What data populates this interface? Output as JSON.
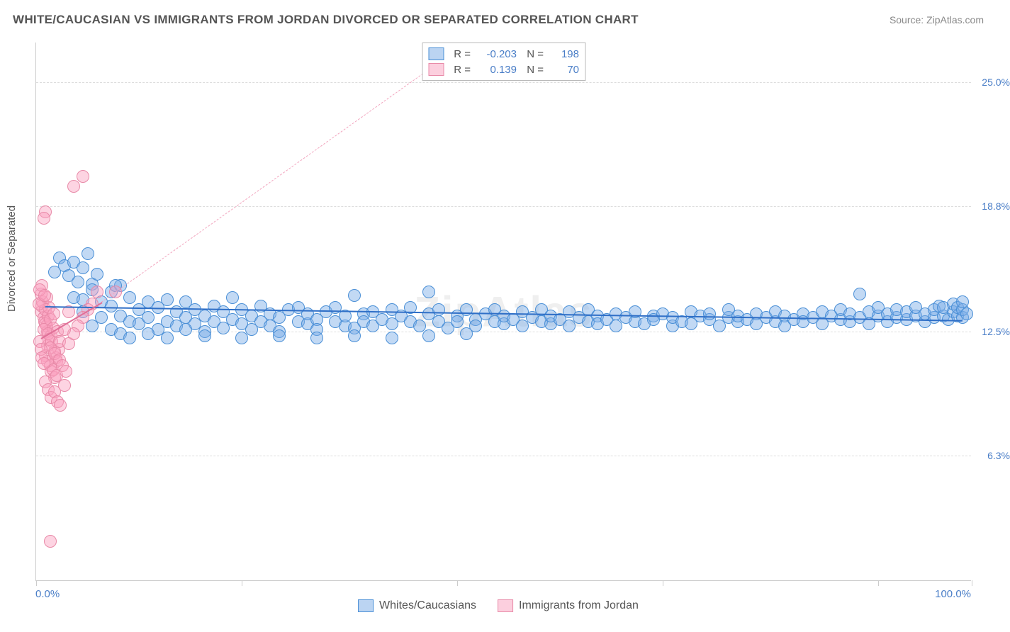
{
  "title": "WHITE/CAUCASIAN VS IMMIGRANTS FROM JORDAN DIVORCED OR SEPARATED CORRELATION CHART",
  "source": "Source: ZipAtlas.com",
  "watermark": "ZipAtlas",
  "y_axis_title": "Divorced or Separated",
  "chart": {
    "type": "scatter",
    "xlim": [
      0,
      100
    ],
    "ylim": [
      0,
      27
    ],
    "x_ticks_at": [
      0,
      22,
      45,
      67,
      90,
      100
    ],
    "y_gridlines": [
      {
        "value": 6.3,
        "label": "6.3%"
      },
      {
        "value": 12.5,
        "label": "12.5%"
      },
      {
        "value": 18.8,
        "label": "18.8%"
      },
      {
        "value": 25.0,
        "label": "25.0%"
      }
    ],
    "x_min_label": "0.0%",
    "x_max_label": "100.0%",
    "background_color": "#ffffff",
    "grid_color": "#dddddd",
    "axis_color": "#cccccc",
    "tick_label_color": "#4a7ec7",
    "marker_radius": 9,
    "marker_stroke_width": 1.5,
    "series": [
      {
        "name": "Whites/Caucasians",
        "fill": "rgba(120,170,230,0.45)",
        "stroke": "#4a8fd6",
        "trend_color": "#2f6fc7",
        "trend_width": 2.5,
        "trend": {
          "x1": 1,
          "y1": 13.8,
          "x2": 99,
          "y2": 13.1
        },
        "points": [
          [
            2,
            15.5
          ],
          [
            2.5,
            16.2
          ],
          [
            3,
            15.8
          ],
          [
            3.5,
            15.3
          ],
          [
            4,
            16.0
          ],
          [
            4.5,
            15.0
          ],
          [
            5,
            15.7
          ],
          [
            5.5,
            16.4
          ],
          [
            6,
            14.9
          ],
          [
            6.5,
            15.4
          ],
          [
            4,
            14.2
          ],
          [
            5,
            14.1
          ],
          [
            6,
            14.6
          ],
          [
            7,
            14.0
          ],
          [
            8,
            13.8
          ],
          [
            8,
            14.5
          ],
          [
            9,
            13.3
          ],
          [
            9,
            14.8
          ],
          [
            10,
            13.0
          ],
          [
            10,
            14.2
          ],
          [
            11,
            13.6
          ],
          [
            11,
            12.9
          ],
          [
            12,
            14.0
          ],
          [
            12,
            13.2
          ],
          [
            13,
            13.7
          ],
          [
            13,
            12.6
          ],
          [
            14,
            14.1
          ],
          [
            14,
            13.0
          ],
          [
            15,
            13.5
          ],
          [
            15,
            12.8
          ],
          [
            16,
            13.2
          ],
          [
            16,
            14.0
          ],
          [
            17,
            12.9
          ],
          [
            17,
            13.6
          ],
          [
            18,
            13.3
          ],
          [
            18,
            12.5
          ],
          [
            19,
            13.8
          ],
          [
            19,
            13.0
          ],
          [
            20,
            13.5
          ],
          [
            20,
            12.7
          ],
          [
            21,
            14.2
          ],
          [
            21,
            13.1
          ],
          [
            22,
            12.9
          ],
          [
            22,
            13.6
          ],
          [
            23,
            13.3
          ],
          [
            23,
            12.6
          ],
          [
            24,
            13.8
          ],
          [
            24,
            13.0
          ],
          [
            25,
            13.4
          ],
          [
            25,
            12.8
          ],
          [
            26,
            13.2
          ],
          [
            26,
            12.5
          ],
          [
            27,
            13.6
          ],
          [
            28,
            13.0
          ],
          [
            28,
            13.7
          ],
          [
            29,
            12.9
          ],
          [
            29,
            13.4
          ],
          [
            30,
            13.1
          ],
          [
            30,
            12.6
          ],
          [
            31,
            13.5
          ],
          [
            32,
            13.0
          ],
          [
            32,
            13.7
          ],
          [
            33,
            12.8
          ],
          [
            33,
            13.3
          ],
          [
            34,
            14.3
          ],
          [
            34,
            12.7
          ],
          [
            35,
            13.4
          ],
          [
            35,
            13.0
          ],
          [
            36,
            12.8
          ],
          [
            36,
            13.5
          ],
          [
            37,
            13.1
          ],
          [
            38,
            13.6
          ],
          [
            38,
            12.9
          ],
          [
            39,
            13.3
          ],
          [
            40,
            13.0
          ],
          [
            40,
            13.7
          ],
          [
            41,
            12.8
          ],
          [
            42,
            13.4
          ],
          [
            42,
            14.5
          ],
          [
            43,
            13.0
          ],
          [
            43,
            13.6
          ],
          [
            44,
            12.7
          ],
          [
            45,
            13.3
          ],
          [
            45,
            13.0
          ],
          [
            46,
            13.6
          ],
          [
            47,
            13.1
          ],
          [
            47,
            12.8
          ],
          [
            48,
            13.4
          ],
          [
            49,
            13.0
          ],
          [
            49,
            13.6
          ],
          [
            50,
            12.9
          ],
          [
            50,
            13.3
          ],
          [
            51,
            13.1
          ],
          [
            52,
            13.5
          ],
          [
            52,
            12.8
          ],
          [
            53,
            13.2
          ],
          [
            54,
            13.0
          ],
          [
            54,
            13.6
          ],
          [
            55,
            12.9
          ],
          [
            55,
            13.3
          ],
          [
            56,
            13.1
          ],
          [
            57,
            13.5
          ],
          [
            57,
            12.8
          ],
          [
            58,
            13.2
          ],
          [
            59,
            13.0
          ],
          [
            59,
            13.6
          ],
          [
            60,
            13.3
          ],
          [
            60,
            12.9
          ],
          [
            61,
            13.1
          ],
          [
            62,
            13.4
          ],
          [
            62,
            12.8
          ],
          [
            63,
            13.2
          ],
          [
            64,
            13.0
          ],
          [
            64,
            13.5
          ],
          [
            65,
            12.9
          ],
          [
            66,
            13.3
          ],
          [
            66,
            13.1
          ],
          [
            67,
            13.4
          ],
          [
            68,
            12.8
          ],
          [
            68,
            13.2
          ],
          [
            69,
            13.0
          ],
          [
            70,
            13.5
          ],
          [
            70,
            12.9
          ],
          [
            71,
            13.3
          ],
          [
            72,
            13.1
          ],
          [
            72,
            13.4
          ],
          [
            73,
            12.8
          ],
          [
            74,
            13.2
          ],
          [
            74,
            13.6
          ],
          [
            75,
            13.0
          ],
          [
            75,
            13.3
          ],
          [
            76,
            13.1
          ],
          [
            77,
            13.4
          ],
          [
            77,
            12.9
          ],
          [
            78,
            13.2
          ],
          [
            79,
            13.0
          ],
          [
            79,
            13.5
          ],
          [
            80,
            13.3
          ],
          [
            80,
            12.8
          ],
          [
            81,
            13.1
          ],
          [
            82,
            13.4
          ],
          [
            82,
            13.0
          ],
          [
            83,
            13.2
          ],
          [
            84,
            13.5
          ],
          [
            84,
            12.9
          ],
          [
            85,
            13.3
          ],
          [
            86,
            13.1
          ],
          [
            86,
            13.6
          ],
          [
            87,
            13.0
          ],
          [
            87,
            13.4
          ],
          [
            88,
            14.4
          ],
          [
            88,
            13.2
          ],
          [
            89,
            13.5
          ],
          [
            89,
            12.9
          ],
          [
            90,
            13.3
          ],
          [
            90,
            13.7
          ],
          [
            91,
            13.0
          ],
          [
            91,
            13.4
          ],
          [
            92,
            13.2
          ],
          [
            92,
            13.6
          ],
          [
            93,
            13.1
          ],
          [
            93,
            13.5
          ],
          [
            94,
            13.3
          ],
          [
            94,
            13.7
          ],
          [
            95,
            13.0
          ],
          [
            95,
            13.4
          ],
          [
            96,
            13.2
          ],
          [
            96,
            13.6
          ],
          [
            96.5,
            13.8
          ],
          [
            97,
            13.3
          ],
          [
            97,
            13.7
          ],
          [
            97.5,
            13.1
          ],
          [
            98,
            13.5
          ],
          [
            98,
            13.9
          ],
          [
            98.5,
            13.3
          ],
          [
            98.5,
            13.7
          ],
          [
            99,
            13.2
          ],
          [
            99,
            13.6
          ],
          [
            99,
            14.0
          ],
          [
            99.5,
            13.4
          ],
          [
            5,
            13.5
          ],
          [
            6,
            12.8
          ],
          [
            7,
            13.2
          ],
          [
            8,
            12.6
          ],
          [
            9,
            12.4
          ],
          [
            10,
            12.2
          ],
          [
            12,
            12.4
          ],
          [
            14,
            12.2
          ],
          [
            16,
            12.6
          ],
          [
            18,
            12.3
          ],
          [
            22,
            12.2
          ],
          [
            26,
            12.3
          ],
          [
            30,
            12.2
          ],
          [
            34,
            12.3
          ],
          [
            38,
            12.2
          ],
          [
            42,
            12.3
          ],
          [
            46,
            12.4
          ],
          [
            8.5,
            14.8
          ]
        ]
      },
      {
        "name": "Immigrants from Jordan",
        "fill": "rgba(250,160,190,0.45)",
        "stroke": "#e88aa8",
        "trend_color": "#e07098",
        "trend_width": 2,
        "trend": {
          "x1": 0.5,
          "y1": 12.2,
          "x2": 7,
          "y2": 14.0
        },
        "extrapolation": {
          "x1": 7,
          "y1": 14.0,
          "x2": 46,
          "y2": 27
        },
        "extrapolation_color": "#f2a6bf",
        "points": [
          [
            0.5,
            13.5
          ],
          [
            0.8,
            13.2
          ],
          [
            0.6,
            13.8
          ],
          [
            0.9,
            13.0
          ],
          [
            1.0,
            13.6
          ],
          [
            1.1,
            12.8
          ],
          [
            0.7,
            14.0
          ],
          [
            1.2,
            12.5
          ],
          [
            1.3,
            13.3
          ],
          [
            1.0,
            12.9
          ],
          [
            1.4,
            13.7
          ],
          [
            0.8,
            12.6
          ],
          [
            1.5,
            13.1
          ],
          [
            1.6,
            12.3
          ],
          [
            1.1,
            14.2
          ],
          [
            1.7,
            12.0
          ],
          [
            1.8,
            12.7
          ],
          [
            1.2,
            11.8
          ],
          [
            1.9,
            13.4
          ],
          [
            2.0,
            11.5
          ],
          [
            1.3,
            12.4
          ],
          [
            2.1,
            11.2
          ],
          [
            1.4,
            12.1
          ],
          [
            2.2,
            11.0
          ],
          [
            2.3,
            12.5
          ],
          [
            1.5,
            10.8
          ],
          [
            2.4,
            11.6
          ],
          [
            1.6,
            10.5
          ],
          [
            2.5,
            12.0
          ],
          [
            2.0,
            10.2
          ],
          [
            0.5,
            14.4
          ],
          [
            0.6,
            14.8
          ],
          [
            1.0,
            11.3
          ],
          [
            1.2,
            11.0
          ],
          [
            1.5,
            11.7
          ],
          [
            1.8,
            10.6
          ],
          [
            2.0,
            11.4
          ],
          [
            2.2,
            10.3
          ],
          [
            2.5,
            11.1
          ],
          [
            2.8,
            10.8
          ],
          [
            0.4,
            12.0
          ],
          [
            0.5,
            11.6
          ],
          [
            0.6,
            11.2
          ],
          [
            0.8,
            10.9
          ],
          [
            1.0,
            10.0
          ],
          [
            1.3,
            9.6
          ],
          [
            1.6,
            9.2
          ],
          [
            2.0,
            9.5
          ],
          [
            2.3,
            9.0
          ],
          [
            2.6,
            8.8
          ],
          [
            3.0,
            9.8
          ],
          [
            3.2,
            10.5
          ],
          [
            3.5,
            11.9
          ],
          [
            0.3,
            13.9
          ],
          [
            0.4,
            14.6
          ],
          [
            0.9,
            14.3
          ],
          [
            5.0,
            20.3
          ],
          [
            4.0,
            19.8
          ],
          [
            1.0,
            18.5
          ],
          [
            0.8,
            18.2
          ],
          [
            6.5,
            14.5
          ],
          [
            6.0,
            13.9
          ],
          [
            5.5,
            13.6
          ],
          [
            5.0,
            13.2
          ],
          [
            4.5,
            12.8
          ],
          [
            4.0,
            12.4
          ],
          [
            3.5,
            13.5
          ],
          [
            3.0,
            12.6
          ],
          [
            1.5,
            2.0
          ],
          [
            8.5,
            14.5
          ]
        ]
      }
    ]
  },
  "stats_legend": {
    "rows": [
      {
        "swatch_fill": "rgba(120,170,230,0.5)",
        "swatch_border": "#4a8fd6",
        "r_label": "R =",
        "r_value": "-0.203",
        "n_label": "N =",
        "n_value": "198"
      },
      {
        "swatch_fill": "rgba(250,160,190,0.5)",
        "swatch_border": "#e88aa8",
        "r_label": "R =",
        "r_value": "0.139",
        "n_label": "N =",
        "n_value": "70"
      }
    ]
  },
  "bottom_legend": {
    "items": [
      {
        "swatch_fill": "rgba(120,170,230,0.5)",
        "swatch_border": "#4a8fd6",
        "label": "Whites/Caucasians"
      },
      {
        "swatch_fill": "rgba(250,160,190,0.5)",
        "swatch_border": "#e88aa8",
        "label": "Immigrants from Jordan"
      }
    ]
  }
}
